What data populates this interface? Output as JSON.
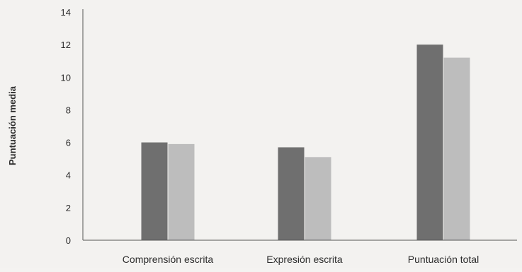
{
  "chart_data": {
    "type": "bar",
    "title": "",
    "xlabel": "",
    "ylabel": "Puntuación media",
    "ylim": [
      0,
      14
    ],
    "yticks": [
      0,
      2,
      4,
      6,
      8,
      10,
      12,
      14
    ],
    "grid": false,
    "legend": "none",
    "categories": [
      "Comprensión escrita",
      "Expresión escrita",
      "Puntuación total"
    ],
    "series": [
      {
        "values": [
          6.0,
          5.7,
          12.0
        ],
        "color": "#6f6f6f"
      },
      {
        "values": [
          5.9,
          5.1,
          11.2
        ],
        "color": "#bdbdbd"
      }
    ]
  }
}
